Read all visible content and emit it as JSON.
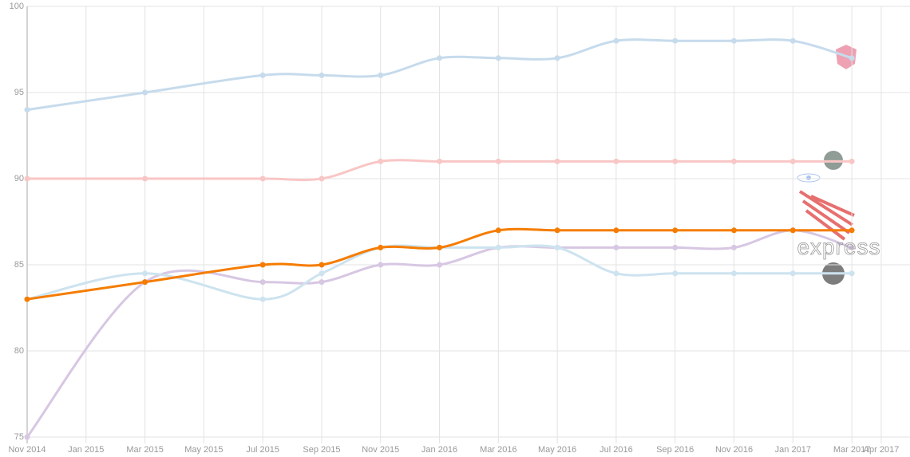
{
  "chart_data": {
    "type": "line",
    "x": [
      "2014-11",
      "2015-03",
      "2015-07",
      "2015-09",
      "2015-11",
      "2016-01",
      "2016-03",
      "2016-05",
      "2016-07",
      "2016-09",
      "2016-11",
      "2017-01",
      "2017-03"
    ],
    "series": [
      {
        "color": "#c6dbec",
        "values": [
          94,
          95,
          96,
          96,
          96,
          97,
          97,
          97,
          98,
          98,
          98,
          98,
          97
        ]
      },
      {
        "color": "#f9c6c6",
        "values": [
          90,
          90,
          90,
          90,
          91,
          91,
          91,
          91,
          91,
          91,
          91,
          91,
          91
        ]
      },
      {
        "color": "#d7c7e3",
        "name": "express",
        "values": [
          75,
          84,
          84,
          84,
          85,
          85,
          86,
          86,
          86,
          86,
          86,
          87,
          86
        ]
      },
      {
        "color": "#cde3ef",
        "values": [
          83,
          84.5,
          83,
          84.5,
          86,
          86,
          86,
          86,
          84.5,
          84.5,
          84.5,
          84.5,
          84.5
        ]
      },
      {
        "color": "#f57c00",
        "values": [
          83,
          84,
          85,
          85,
          86,
          86,
          87,
          87,
          87,
          87,
          87,
          87,
          87
        ]
      }
    ],
    "xlim": [
      "2014-11",
      "2017-04"
    ],
    "xticks": [
      {
        "value": "2014-11",
        "label": "Nov 2014"
      },
      {
        "value": "2015-01",
        "label": "Jan 2015"
      },
      {
        "value": "2015-03",
        "label": "Mar 2015"
      },
      {
        "value": "2015-05",
        "label": "May 2015"
      },
      {
        "value": "2015-07",
        "label": "Jul 2015"
      },
      {
        "value": "2015-09",
        "label": "Sep 2015"
      },
      {
        "value": "2015-11",
        "label": "Nov 2015"
      },
      {
        "value": "2016-01",
        "label": "Jan 2016"
      },
      {
        "value": "2016-03",
        "label": "Mar 2016"
      },
      {
        "value": "2016-05",
        "label": "May 2016"
      },
      {
        "value": "2016-07",
        "label": "Jul 2016"
      },
      {
        "value": "2016-09",
        "label": "Sep 2016"
      },
      {
        "value": "2016-11",
        "label": "Nov 2016"
      },
      {
        "value": "2017-01",
        "label": "Jan 2017"
      },
      {
        "value": "2017-03",
        "label": "Mar 2017"
      },
      {
        "value": "2017-04",
        "label": "Apr 2017"
      }
    ],
    "ylim": [
      75,
      100
    ],
    "yticks": [
      75,
      80,
      85,
      90,
      95,
      100
    ],
    "grid": true
  }
}
